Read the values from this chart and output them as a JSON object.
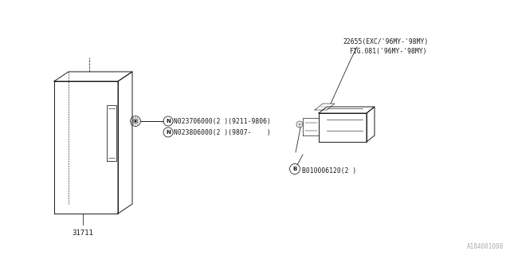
{
  "bg_color": "#ffffff",
  "line_color": "#1a1a1a",
  "fig_width": 6.4,
  "fig_height": 3.2,
  "dpi": 100,
  "watermark": "A184001008",
  "part_31711_label": "31711",
  "bolt_label_1_plain": "N023706000(2 )(9211-9806)",
  "bolt_label_2_plain": "N023806000(2 )(9807-    )",
  "bolt_label_3_plain": "B010006120(2 )"
}
